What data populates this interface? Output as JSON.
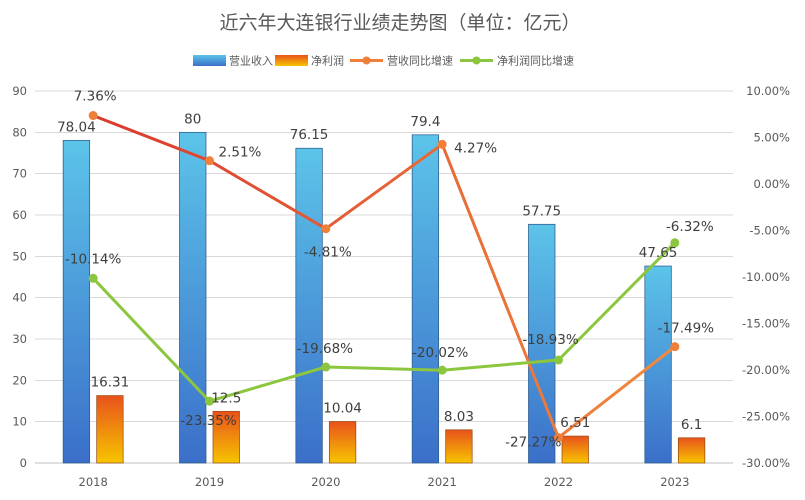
{
  "chart_data": {
    "type": "bar",
    "title": "近六年大连银行业绩走势图（单位：亿元）",
    "categories": [
      "2018",
      "2019",
      "2020",
      "2021",
      "2022",
      "2023"
    ],
    "y_axis": {
      "range": [
        0,
        90
      ],
      "ticks": [
        "0",
        "10",
        "20",
        "30",
        "40",
        "50",
        "60",
        "70",
        "80",
        "90"
      ]
    },
    "y2_axis": {
      "range": [
        -30,
        10
      ],
      "ticks": [
        "-30.00%",
        "-25.00%",
        "-20.00%",
        "-15.00%",
        "-10.00%",
        "-5.00%",
        "0.00%",
        "5.00%",
        "10.00%"
      ]
    },
    "grid": true,
    "legend": "top",
    "series": [
      {
        "name": "营业收入",
        "type": "bar",
        "axis": "left",
        "gradient": [
          "#5cc4e9",
          "#3b6fc9"
        ],
        "values": [
          78.04,
          80,
          76.15,
          79.4,
          57.75,
          47.65
        ],
        "labels": [
          "78.04",
          "80",
          "76.15",
          "79.4",
          "57.75",
          "47.65"
        ]
      },
      {
        "name": "净利润",
        "type": "bar",
        "axis": "left",
        "gradient": [
          "#e8521c",
          "#f7c500"
        ],
        "values": [
          16.31,
          12.5,
          10.04,
          8.03,
          6.51,
          6.1
        ],
        "labels": [
          "16.31",
          "12.5",
          "10.04",
          "8.03",
          "6.51",
          "6.1"
        ]
      },
      {
        "name": "营收同比增速",
        "type": "line",
        "axis": "right",
        "color": "#f07f3a",
        "gradient": [
          "#d9392e",
          "#f28b3d"
        ],
        "values": [
          7.36,
          2.51,
          -4.81,
          4.27,
          -27.27,
          -17.49
        ],
        "labels": [
          "7.36%",
          "2.51%",
          "-4.81%",
          "4.27%",
          "-27.27%",
          "-17.49%"
        ]
      },
      {
        "name": "净利润同比增速",
        "type": "line",
        "axis": "right",
        "color": "#8cc63e",
        "values": [
          -10.14,
          -23.35,
          -19.68,
          -20.02,
          -18.93,
          -6.32
        ],
        "labels": [
          "-10.14%",
          "-23.35%",
          "-19.68%",
          "-20.02%",
          "-18.93%",
          "-6.32%"
        ]
      }
    ]
  }
}
